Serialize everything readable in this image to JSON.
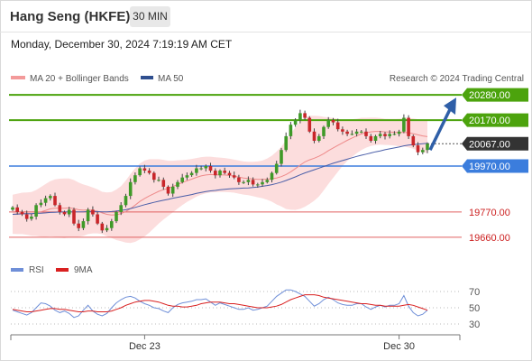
{
  "header": {
    "title": "Hang Seng (HKFE)",
    "timeframe": "30 MIN"
  },
  "datetime": "Monday, December 30, 2024 7:19:19 AM CET",
  "legend": {
    "bollinger": "MA 20 + Bollinger Bands",
    "ma50": "MA 50",
    "rsi": "RSI",
    "ma9": "9MA"
  },
  "credit": "Research © 2024 Trading Central",
  "colors": {
    "green": "#4ca30d",
    "blue": "#3b7ddd",
    "red": "#e06060",
    "candle_up": "#3f9a28",
    "candle_down": "#c9262a",
    "band_fill": "#fbd7d7",
    "ma20": "#ee8a8a",
    "ma50": "#4a5ea8",
    "rsi": "#6f8fd8",
    "rsi_ma": "#d92020",
    "arrow": "#2f5fa8",
    "current_bg": "#333333"
  },
  "chart_data": {
    "type": "candlestick",
    "x_tick_labels": [
      "Dec 23",
      "Dec 30"
    ],
    "price_levels": [
      {
        "value": 20280.0,
        "label": "20280.00",
        "kind": "resistance"
      },
      {
        "value": 20170.0,
        "label": "20170.00",
        "kind": "resistance"
      },
      {
        "value": 20067.0,
        "label": "20067.00",
        "kind": "current"
      },
      {
        "value": 19970.0,
        "label": "19970.00",
        "kind": "pivot"
      },
      {
        "value": 19770.0,
        "label": "19770.00",
        "kind": "support"
      },
      {
        "value": 19660.0,
        "label": "19660.00",
        "kind": "support"
      }
    ],
    "closes": [
      19790,
      19770,
      19760,
      19740,
      19750,
      19800,
      19810,
      19830,
      19840,
      19800,
      19770,
      19760,
      19780,
      19720,
      19700,
      19730,
      19780,
      19760,
      19720,
      19690,
      19700,
      19730,
      19770,
      19800,
      19840,
      19900,
      19930,
      19960,
      19950,
      19940,
      19910,
      19910,
      19880,
      19850,
      19880,
      19900,
      19920,
      19930,
      19940,
      19960,
      19960,
      19970,
      19950,
      19930,
      19950,
      19940,
      19930,
      19920,
      19900,
      19900,
      19910,
      19890,
      19890,
      19900,
      19910,
      19940,
      19980,
      20040,
      20100,
      20150,
      20170,
      20200,
      20180,
      20120,
      20080,
      20100,
      20140,
      20170,
      20160,
      20130,
      20120,
      20110,
      20110,
      20120,
      20120,
      20100,
      20080,
      20100,
      20110,
      20100,
      20110,
      20110,
      20120,
      20180,
      20100,
      20060,
      20030,
      20040,
      20067
    ],
    "ma20": [
      19760,
      19762,
      19764,
      19763,
      19762,
      19766,
      19771,
      19777,
      19784,
      19787,
      19787,
      19786,
      19788,
      19785,
      19780,
      19778,
      19779,
      19777,
      19773,
      19766,
      19760,
      19757,
      19758,
      19763,
      19772,
      19785,
      19800,
      19816,
      19829,
      19840,
      19850,
      19860,
      19867,
      19873,
      19881,
      19890,
      19898,
      19906,
      19913,
      19921,
      19927,
      19931,
      19933,
      19932,
      19932,
      19931,
      19929,
      19926,
      19922,
      19918,
      19916,
      19914,
      19912,
      19912,
      19913,
      19915,
      19918,
      19924,
      19933,
      19945,
      19959,
      19974,
      19988,
      19997,
      20004,
      20013,
      20024,
      20037,
      20049,
      20060,
      20071,
      20082,
      20092,
      20101,
      20110,
      20115,
      20119,
      20121,
      20121,
      20119,
      20118,
      20117,
      20116,
      20117,
      20115,
      20111,
      20106,
      20101,
      20098
    ],
    "ma50": [
      19760,
      19761,
      19762,
      19763,
      19763,
      19764,
      19765,
      19766,
      19768,
      19769,
      19770,
      19770,
      19771,
      19771,
      19771,
      19771,
      19772,
      19772,
      19772,
      19771,
      19771,
      19772,
      19774,
      19777,
      19780,
      19785,
      19790,
      19796,
      19802,
      19807,
      19812,
      19817,
      19821,
      19825,
      19830,
      19834,
      19838,
      19842,
      19846,
      19851,
      19855,
      19859,
      19862,
      19864,
      19867,
      19869,
      19871,
      19872,
      19873,
      19874,
      19875,
      19877,
      19879,
      19882,
      19885,
      19889,
      19894,
      19900,
      19907,
      19915,
      19923,
      19932,
      19940,
      19947,
      19954,
      19961,
      19968,
      19975,
      19982,
      19988,
      19994,
      20000,
      20006,
      20012,
      20017,
      20022,
      20027,
      20032,
      20036,
      20041,
      20045,
      20049,
      20053,
      20058,
      20061,
      20063,
      20065,
      20067,
      20069
    ],
    "bollinger_width": [
      85,
      88,
      90,
      92,
      95,
      100,
      108,
      115,
      120,
      125,
      128,
      130,
      128,
      124,
      118,
      112,
      105,
      100,
      96,
      92,
      95,
      100,
      110,
      120,
      135,
      150,
      160,
      165,
      165,
      160,
      150,
      140,
      130,
      120,
      112,
      105,
      98,
      92,
      88,
      84,
      82,
      80,
      78,
      76,
      75,
      74,
      73,
      72,
      72,
      72,
      73,
      75,
      78,
      82,
      90,
      100,
      115,
      130,
      150,
      165,
      180,
      190,
      195,
      192,
      185,
      175,
      160,
      145,
      130,
      115,
      100,
      90,
      82,
      75,
      70,
      65,
      62,
      60,
      58,
      57,
      57,
      58,
      60,
      62,
      64,
      66,
      68,
      70,
      72
    ],
    "rsi": [
      47,
      45,
      43,
      41,
      44,
      50,
      56,
      55,
      52,
      47,
      44,
      46,
      43,
      38,
      40,
      47,
      53,
      46,
      42,
      40,
      43,
      50,
      56,
      60,
      63,
      64,
      62,
      58,
      55,
      53,
      50,
      49,
      46,
      44,
      50,
      54,
      56,
      57,
      58,
      60,
      60,
      61,
      57,
      53,
      56,
      54,
      52,
      50,
      48,
      48,
      50,
      47,
      48,
      50,
      52,
      58,
      64,
      68,
      72,
      72,
      70,
      67,
      64,
      58,
      52,
      55,
      60,
      63,
      60,
      56,
      54,
      53,
      53,
      55,
      55,
      51,
      48,
      51,
      53,
      51,
      53,
      53,
      55,
      65,
      52,
      44,
      40,
      42,
      47
    ],
    "rsi_ma": [
      48,
      47,
      46,
      45,
      45,
      46,
      47,
      48,
      49,
      49,
      48,
      48,
      47,
      46,
      45,
      45,
      46,
      46,
      45,
      45,
      45,
      46,
      48,
      50,
      53,
      55,
      57,
      58,
      59,
      59,
      58,
      57,
      55,
      53,
      52,
      52,
      51,
      51,
      52,
      53,
      55,
      56,
      57,
      57,
      57,
      56,
      55,
      55,
      54,
      53,
      52,
      51,
      50,
      50,
      50,
      51,
      52,
      54,
      57,
      60,
      62,
      64,
      66,
      66,
      66,
      65,
      63,
      62,
      61,
      60,
      59,
      58,
      57,
      56,
      55,
      55,
      54,
      53,
      53,
      52,
      52,
      52,
      52,
      53,
      54,
      53,
      51,
      49,
      47
    ],
    "rsi_ticks": [
      "70",
      "50",
      "30"
    ]
  }
}
